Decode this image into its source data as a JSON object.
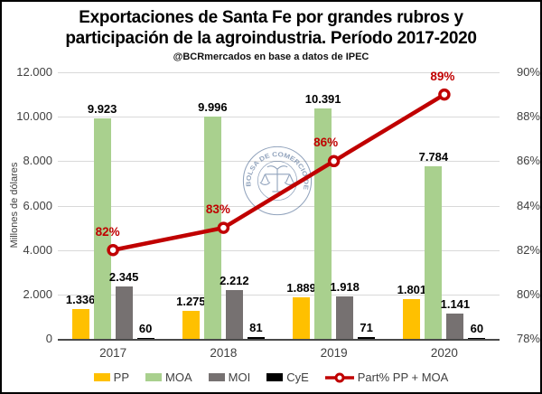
{
  "header": {
    "title_line1": "Exportaciones de Santa Fe por grandes rubros y",
    "title_line2": "participación de la agroindustria. Período 2017-2020",
    "subtitle": "@BCRmercados en base a datos de IPEC"
  },
  "watermark": {
    "seal_text": "BOLSA DE COMERCIO DE ROSARIO"
  },
  "chart_data": {
    "type": "bar",
    "combo_note": "grouped bars (left axis) + line series (right axis)",
    "categories": [
      "2017",
      "2018",
      "2019",
      "2020"
    ],
    "series": [
      {
        "name": "PP",
        "color": "#FFC000",
        "values": [
          1336,
          1275,
          1889,
          1801
        ],
        "labels": [
          "1.336",
          "1.275",
          "1.889",
          "1.801"
        ]
      },
      {
        "name": "MOA",
        "color": "#A9D08E",
        "values": [
          9923,
          9996,
          10391,
          7784
        ],
        "labels": [
          "9.923",
          "9.996",
          "10.391",
          "7.784"
        ]
      },
      {
        "name": "MOI",
        "color": "#767171",
        "values": [
          2345,
          2212,
          1918,
          1141
        ],
        "labels": [
          "2.345",
          "2.212",
          "1.918",
          "1.141"
        ]
      },
      {
        "name": "CyE",
        "color": "#000000",
        "values": [
          60,
          81,
          71,
          60
        ],
        "labels": [
          "60",
          "81",
          "71",
          "60"
        ]
      }
    ],
    "line_series": {
      "name": "Part% PP + MOA",
      "color": "#C00000",
      "values": [
        82,
        83,
        86,
        89
      ],
      "labels": [
        "82%",
        "83%",
        "86%",
        "89%"
      ],
      "axis": "right"
    },
    "y_left": {
      "label": "Millones de dólares",
      "min": 0,
      "max": 12000,
      "ticks": [
        "12.000",
        "10.000",
        "8.000",
        "6.000",
        "4.000",
        "2.000",
        "0"
      ]
    },
    "y_right": {
      "min": 78,
      "max": 90,
      "ticks": [
        "90%",
        "88%",
        "86%",
        "84%",
        "82%",
        "80%",
        "78%"
      ]
    },
    "grid": true,
    "legend_position": "bottom"
  }
}
